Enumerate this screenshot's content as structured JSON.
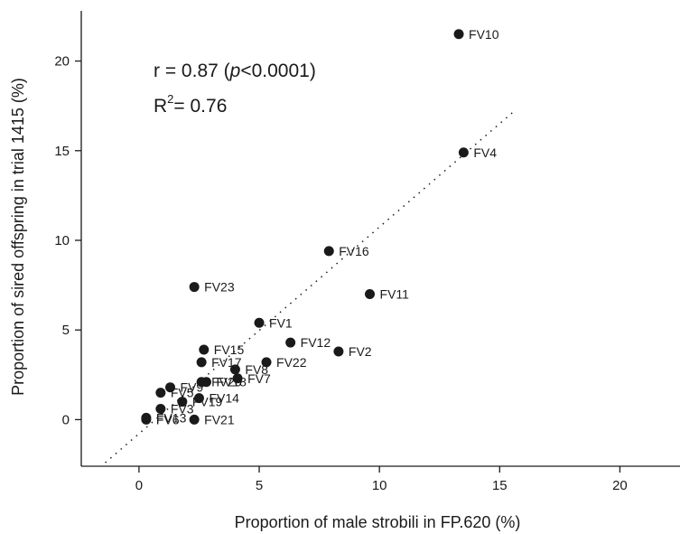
{
  "chart_data": {
    "type": "scatter",
    "xlabel": "Proportion of male strobili in FP.620 (%)",
    "ylabel": "Proportion of sired offspring in trial 1415 (%)",
    "xlim": [
      -2.4,
      22.5
    ],
    "ylim": [
      -2.6,
      22.8
    ],
    "xticks": [
      0,
      5,
      10,
      15,
      20
    ],
    "yticks": [
      0,
      5,
      10,
      15,
      20
    ],
    "annotations": {
      "r_prefix": "r = 0.87 (",
      "r_p": "p",
      "r_suffix": "<0.0001)",
      "r2_prefix": "R",
      "r2_sup": "2",
      "r2_suffix": "= 0.76"
    },
    "regression": {
      "style": "dotted",
      "x": [
        -1.4,
        15.6
      ],
      "y": [
        -2.4,
        17.2
      ]
    },
    "points": [
      {
        "label": "FV10",
        "x": 13.3,
        "y": 21.5
      },
      {
        "label": "FV4",
        "x": 13.5,
        "y": 14.9
      },
      {
        "label": "FV16",
        "x": 7.9,
        "y": 9.4
      },
      {
        "label": "FV23",
        "x": 2.3,
        "y": 7.4
      },
      {
        "label": "FV11",
        "x": 9.6,
        "y": 7.0
      },
      {
        "label": "FV1",
        "x": 5.0,
        "y": 5.4
      },
      {
        "label": "FV12",
        "x": 6.3,
        "y": 4.3
      },
      {
        "label": "FV2",
        "x": 8.3,
        "y": 3.8
      },
      {
        "label": "FV15",
        "x": 2.7,
        "y": 3.9
      },
      {
        "label": "FV17",
        "x": 2.6,
        "y": 3.2
      },
      {
        "label": "FV22",
        "x": 5.3,
        "y": 3.2
      },
      {
        "label": "FV8",
        "x": 4.0,
        "y": 2.8
      },
      {
        "label": "FV7",
        "x": 4.1,
        "y": 2.3
      },
      {
        "label": "FV20",
        "x": 2.6,
        "y": 2.1
      },
      {
        "label": "FV18",
        "x": 2.8,
        "y": 2.1
      },
      {
        "label": "FV9",
        "x": 1.3,
        "y": 1.8
      },
      {
        "label": "FV5",
        "x": 0.9,
        "y": 1.5
      },
      {
        "label": "FV14",
        "x": 2.5,
        "y": 1.2
      },
      {
        "label": "FV19",
        "x": 1.8,
        "y": 1.0
      },
      {
        "label": "FV3",
        "x": 0.9,
        "y": 0.6
      },
      {
        "label": "FV13",
        "x": 0.3,
        "y": 0.1
      },
      {
        "label": "FV6",
        "x": 0.3,
        "y": 0.0
      },
      {
        "label": "FV21",
        "x": 2.3,
        "y": 0.0
      }
    ]
  }
}
